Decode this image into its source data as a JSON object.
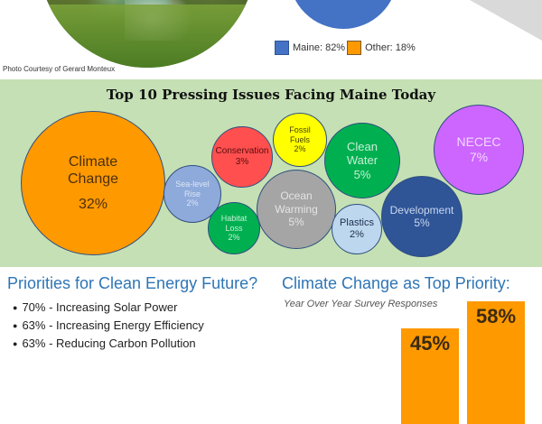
{
  "photo": {
    "alt": "coastal cliff photo",
    "credit": "Photo Courtesy of Gerard Monteux"
  },
  "pie_legend": [
    {
      "label": "Maine: 82%",
      "color": "#4472c4",
      "value": 82
    },
    {
      "label": "Other: 18%",
      "color": "#ff9900",
      "value": 18
    }
  ],
  "bubbles": {
    "title": "Top 10 Pressing Issues Facing Maine Today",
    "items": [
      {
        "name": "climate-change",
        "lines": [
          "Climate",
          "Change"
        ],
        "pct": "32%",
        "value": 32,
        "fill": "#ff9900",
        "text": "#4a3010"
      },
      {
        "name": "sea-level-rise",
        "lines": [
          "Sea-level",
          "Rise"
        ],
        "pct": "2%",
        "value": 2,
        "fill": "#8eaadb",
        "text": "#dce6f4"
      },
      {
        "name": "conservation",
        "lines": [
          "Conservation"
        ],
        "pct": "3%",
        "value": 3,
        "fill": "#ff4f4f",
        "text": "#5a0c0c"
      },
      {
        "name": "habitat-loss",
        "lines": [
          "Habitat",
          "Loss"
        ],
        "pct": "2%",
        "value": 2,
        "fill": "#00b050",
        "text": "#c6efd6"
      },
      {
        "name": "fossil-fuels",
        "lines": [
          "Fossil",
          "Fuels"
        ],
        "pct": "2%",
        "value": 2,
        "fill": "#ffff00",
        "text": "#4a4400"
      },
      {
        "name": "ocean-warming",
        "lines": [
          "Ocean",
          "Warming"
        ],
        "pct": "5%",
        "value": 5,
        "fill": "#a5a5a5",
        "text": "#e4e4e4"
      },
      {
        "name": "clean-water",
        "lines": [
          "Clean",
          "Water"
        ],
        "pct": "5%",
        "value": 5,
        "fill": "#00b050",
        "text": "#c6efd6"
      },
      {
        "name": "plastics",
        "lines": [
          "Plastics"
        ],
        "pct": "2%",
        "value": 2,
        "fill": "#bdd7ee",
        "text": "#1f2f4f"
      },
      {
        "name": "development",
        "lines": [
          "Development"
        ],
        "pct": "5%",
        "value": 5,
        "fill": "#2f5597",
        "text": "#c9d6ee"
      },
      {
        "name": "necec",
        "lines": [
          "NECEC"
        ],
        "pct": "7%",
        "value": 7,
        "fill": "#cc66ff",
        "text": "#f3d9ff"
      }
    ]
  },
  "priorities": {
    "title": "Priorities for Clean Energy Future?",
    "items": [
      "70% - Increasing Solar Power",
      "63% - Increasing Energy Efficiency",
      "63% - Reducing Carbon Pollution"
    ]
  },
  "climate_priority": {
    "title": "Climate Change as Top Priority:",
    "subtitle": "Year Over Year Survey Responses",
    "bars": [
      {
        "label": "45%",
        "value": 45
      },
      {
        "label": "58%",
        "value": 58
      }
    ]
  },
  "chart_data": {
    "type": "bar",
    "title": "Climate Change as Top Priority:",
    "subtitle": "Year Over Year Survey Responses",
    "categories": [
      "",
      ""
    ],
    "values": [
      45,
      58
    ],
    "data_labels": [
      "45%",
      "58%"
    ]
  }
}
